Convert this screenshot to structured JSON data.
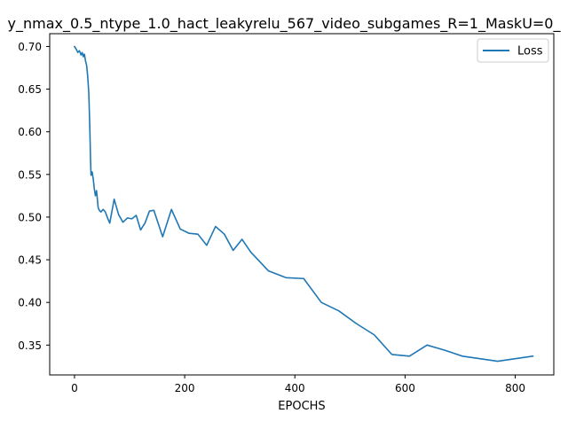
{
  "chart_data": {
    "type": "line",
    "title": "y_nmax_0.5_ntype_1.0_hact_leakyrelu_567_video_subgames_R=1_MaskU=0_",
    "xlabel": "EPOCHS",
    "ylabel": "",
    "xlim": [
      -45,
      870
    ],
    "ylim": [
      0.315,
      0.715
    ],
    "xticks": [
      0,
      200,
      400,
      600,
      800
    ],
    "yticks": [
      0.35,
      0.4,
      0.45,
      0.5,
      0.55,
      0.6,
      0.65,
      0.7
    ],
    "xtick_labels": [
      "0",
      "200",
      "400",
      "600",
      "800"
    ],
    "ytick_labels": [
      "0.35",
      "0.40",
      "0.45",
      "0.50",
      "0.55",
      "0.60",
      "0.65",
      "0.70"
    ],
    "grid": false,
    "legend_position": "top-right",
    "series": [
      {
        "name": "Loss",
        "color": "#1f77b4",
        "x": [
          0,
          3,
          6,
          9,
          12,
          14,
          16,
          18,
          20,
          22,
          24,
          26,
          28,
          29,
          30,
          32,
          34,
          36,
          38,
          40,
          43,
          45,
          48,
          52,
          56,
          60,
          64,
          72,
          80,
          88,
          96,
          104,
          112,
          120,
          128,
          136,
          144,
          160,
          176,
          192,
          208,
          224,
          240,
          256,
          272,
          288,
          304,
          320,
          352,
          384,
          416,
          448,
          480,
          512,
          544,
          576,
          608,
          640,
          672,
          704,
          736,
          768,
          800,
          832
        ],
        "y": [
          0.7,
          0.697,
          0.693,
          0.695,
          0.69,
          0.693,
          0.688,
          0.691,
          0.683,
          0.678,
          0.665,
          0.645,
          0.6,
          0.57,
          0.549,
          0.553,
          0.545,
          0.533,
          0.525,
          0.531,
          0.511,
          0.508,
          0.506,
          0.509,
          0.506,
          0.499,
          0.493,
          0.521,
          0.503,
          0.494,
          0.499,
          0.498,
          0.502,
          0.485,
          0.493,
          0.507,
          0.508,
          0.477,
          0.509,
          0.486,
          0.481,
          0.48,
          0.467,
          0.489,
          0.48,
          0.461,
          0.474,
          0.459,
          0.437,
          0.429,
          0.428,
          0.4,
          0.39,
          0.375,
          0.362,
          0.339,
          0.337,
          0.35,
          0.344,
          0.337,
          0.334,
          0.331,
          0.334,
          0.337
        ]
      }
    ]
  }
}
